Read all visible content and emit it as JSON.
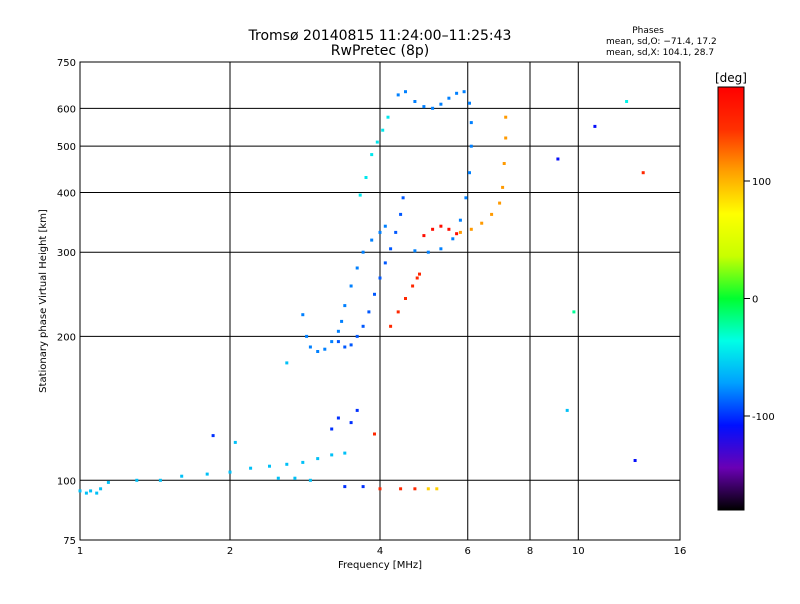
{
  "chart_data": {
    "type": "scatter",
    "title": "Tromsø 20140815 11:24:00–11:25:43",
    "subtitle": "RwPretec (8p)",
    "xlabel": "Frequency [MHz]",
    "ylabel": "Stationary phase Virtual Height [km]",
    "xscale": "log",
    "yscale": "log",
    "xlim": [
      1,
      16
    ],
    "ylim": [
      75,
      750
    ],
    "x_ticks": [
      1,
      2,
      4,
      6,
      8,
      10,
      16
    ],
    "y_ticks": [
      75,
      100,
      200,
      300,
      400,
      500,
      600,
      750
    ],
    "grid": true,
    "phase_info": {
      "title": "Phases",
      "line_o": "mean, sd,O: −71.4, 17.2",
      "line_x": "mean, sd,X: 104.1, 28.7"
    },
    "colorbar": {
      "label": "[deg]",
      "range": [
        -180,
        180
      ],
      "ticks": [
        100,
        0,
        -100
      ],
      "stops": [
        "#000000",
        "#6a00b5",
        "#0010ff",
        "#00a0ff",
        "#00ffe6",
        "#00ff30",
        "#c8ff00",
        "#ffff00",
        "#ffa000",
        "#ff3000",
        "#ff0000"
      ]
    },
    "series": [
      {
        "points": [
          [
            1.0,
            95,
            -60
          ],
          [
            1.03,
            94,
            -60
          ],
          [
            1.05,
            95,
            -60
          ],
          [
            1.08,
            94,
            -60
          ],
          [
            1.1,
            96,
            -60
          ],
          [
            1.14,
            99,
            -60
          ],
          [
            1.3,
            100,
            -60
          ],
          [
            1.45,
            100,
            -60
          ],
          [
            1.6,
            102,
            -60
          ],
          [
            1.8,
            103,
            -60
          ],
          [
            2.0,
            104,
            -60
          ],
          [
            2.2,
            106,
            -60
          ],
          [
            2.4,
            107,
            -60
          ],
          [
            2.6,
            108,
            -60
          ],
          [
            2.8,
            109,
            -60
          ],
          [
            3.0,
            111,
            -60
          ],
          [
            3.2,
            113,
            -60
          ],
          [
            3.4,
            114,
            -60
          ],
          [
            2.5,
            101,
            -60
          ],
          [
            2.7,
            101,
            -60
          ],
          [
            2.9,
            100,
            -60
          ]
        ]
      },
      {
        "points": [
          [
            2.8,
            222,
            -80
          ],
          [
            2.85,
            200,
            -80
          ],
          [
            2.9,
            190,
            -80
          ],
          [
            3.0,
            186,
            -80
          ],
          [
            3.1,
            188,
            -80
          ],
          [
            3.2,
            195,
            -80
          ],
          [
            3.3,
            205,
            -80
          ],
          [
            3.35,
            215,
            -80
          ],
          [
            3.4,
            232,
            -80
          ],
          [
            3.5,
            255,
            -80
          ],
          [
            3.6,
            278,
            -80
          ],
          [
            3.7,
            300,
            -80
          ],
          [
            3.85,
            318,
            -80
          ],
          [
            4.0,
            330,
            -80
          ],
          [
            4.1,
            340,
            -80
          ]
        ]
      },
      {
        "points": [
          [
            3.3,
            195,
            -90
          ],
          [
            3.4,
            190,
            -90
          ],
          [
            3.5,
            192,
            -90
          ],
          [
            3.6,
            200,
            -90
          ],
          [
            3.7,
            210,
            -90
          ],
          [
            3.8,
            225,
            -90
          ],
          [
            3.9,
            245,
            -90
          ],
          [
            4.0,
            265,
            -90
          ],
          [
            4.1,
            285,
            -90
          ],
          [
            4.2,
            305,
            -90
          ],
          [
            4.3,
            330,
            -90
          ],
          [
            4.4,
            360,
            -90
          ],
          [
            4.45,
            390,
            -90
          ]
        ]
      },
      {
        "points": [
          [
            4.35,
            640,
            -80
          ],
          [
            4.5,
            650,
            -80
          ],
          [
            4.7,
            620,
            -80
          ],
          [
            4.9,
            605,
            -80
          ],
          [
            5.1,
            600,
            -80
          ],
          [
            5.3,
            612,
            -80
          ],
          [
            5.5,
            630,
            -80
          ],
          [
            5.7,
            645,
            -80
          ],
          [
            5.9,
            650,
            -80
          ],
          [
            6.05,
            615,
            -80
          ],
          [
            6.1,
            560,
            -80
          ],
          [
            6.1,
            500,
            -80
          ],
          [
            6.05,
            440,
            -80
          ],
          [
            5.95,
            390,
            -80
          ],
          [
            5.8,
            350,
            -80
          ],
          [
            5.6,
            320,
            -80
          ],
          [
            5.3,
            305,
            -80
          ],
          [
            5.0,
            300,
            -80
          ],
          [
            4.7,
            302,
            -80
          ]
        ]
      },
      {
        "points": [
          [
            4.15,
            575,
            -45
          ],
          [
            4.05,
            540,
            -45
          ],
          [
            3.95,
            510,
            -45
          ],
          [
            3.85,
            480,
            -45
          ],
          [
            3.75,
            430,
            -45
          ],
          [
            3.65,
            395,
            -45
          ]
        ]
      },
      {
        "points": [
          [
            4.2,
            210,
            150
          ],
          [
            4.35,
            225,
            150
          ],
          [
            4.5,
            240,
            150
          ],
          [
            4.65,
            255,
            150
          ],
          [
            4.75,
            265,
            150
          ],
          [
            4.8,
            270,
            150
          ]
        ]
      },
      {
        "points": [
          [
            4.9,
            325,
            170
          ],
          [
            5.1,
            335,
            170
          ],
          [
            5.3,
            340,
            170
          ],
          [
            5.5,
            335,
            170
          ],
          [
            5.7,
            328,
            170
          ]
        ]
      },
      {
        "points": [
          [
            5.8,
            330,
            110
          ],
          [
            6.1,
            335,
            110
          ],
          [
            6.4,
            345,
            110
          ],
          [
            6.7,
            360,
            110
          ],
          [
            6.95,
            380,
            110
          ],
          [
            7.05,
            410,
            110
          ],
          [
            7.1,
            460,
            110
          ],
          [
            7.15,
            520,
            110
          ],
          [
            7.15,
            575,
            110
          ]
        ]
      },
      {
        "points": [
          [
            3.4,
            97,
            -100
          ],
          [
            3.7,
            97,
            -100
          ],
          [
            4.0,
            96,
            150
          ],
          [
            4.4,
            96,
            150
          ],
          [
            4.7,
            96,
            150
          ],
          [
            5.0,
            96,
            90
          ],
          [
            5.2,
            96,
            90
          ],
          [
            3.2,
            128,
            -100
          ],
          [
            3.3,
            135,
            -100
          ],
          [
            3.5,
            132,
            -100
          ],
          [
            3.6,
            140,
            -100
          ],
          [
            3.9,
            125,
            150
          ],
          [
            2.05,
            120,
            -60
          ],
          [
            1.85,
            124,
            -100
          ],
          [
            2.6,
            176,
            -60
          ],
          [
            9.1,
            470,
            -110
          ],
          [
            9.5,
            140,
            -60
          ],
          [
            10.8,
            550,
            -110
          ],
          [
            13.0,
            110,
            -110
          ],
          [
            9.8,
            225,
            -20
          ],
          [
            12.5,
            620,
            -40
          ],
          [
            13.5,
            440,
            150
          ]
        ]
      }
    ]
  }
}
